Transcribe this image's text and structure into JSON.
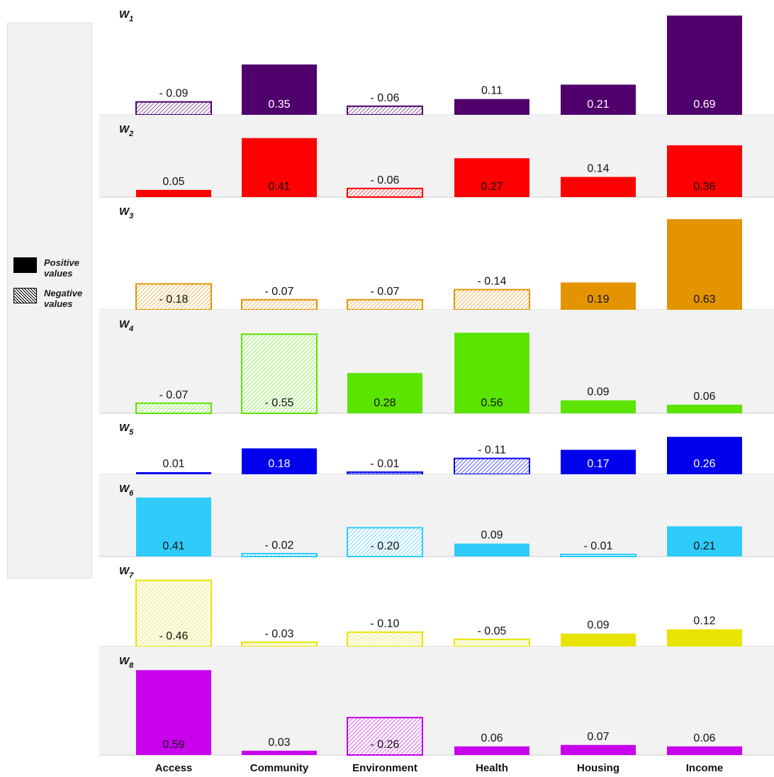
{
  "legend": {
    "positive_line1": "Positive",
    "positive_line2": "values",
    "negative_line1": "Negative",
    "negative_line2": "values"
  },
  "chart_data": {
    "type": "bar",
    "categories": [
      "Access",
      "Community",
      "Environment",
      "Health",
      "Housing",
      "Income"
    ],
    "series": [
      {
        "name": "W1",
        "color": "#4f006d",
        "values": [
          -0.09,
          0.35,
          -0.06,
          0.11,
          0.21,
          0.69
        ],
        "labels": [
          "- 0.09",
          "0.35",
          "- 0.06",
          "0.11",
          "0.21",
          "0.69"
        ]
      },
      {
        "name": "W2",
        "color": "#fe0000",
        "values": [
          0.05,
          0.41,
          -0.06,
          0.27,
          0.14,
          0.36
        ],
        "labels": [
          "0.05",
          "0.41",
          "- 0.06",
          "0.27",
          "0.14",
          "0.36"
        ]
      },
      {
        "name": "W3",
        "color": "#e49400",
        "values": [
          -0.18,
          -0.07,
          -0.07,
          -0.14,
          0.19,
          0.63
        ],
        "labels": [
          "- 0.18",
          "- 0.07",
          "- 0.07",
          "- 0.14",
          "0.19",
          "0.63"
        ]
      },
      {
        "name": "W4",
        "color": "#5ae400",
        "values": [
          -0.07,
          -0.55,
          0.28,
          0.56,
          0.09,
          0.06
        ],
        "labels": [
          "- 0.07",
          "- 0.55",
          "0.28",
          "0.56",
          "0.09",
          "0.06"
        ]
      },
      {
        "name": "W5",
        "color": "#0000ee",
        "values": [
          0.01,
          0.18,
          -0.01,
          -0.11,
          0.17,
          0.26
        ],
        "labels": [
          "0.01",
          "0.18",
          "- 0.01",
          "- 0.11",
          "0.17",
          "0.26"
        ]
      },
      {
        "name": "W6",
        "color": "#2ecbfb",
        "values": [
          0.41,
          -0.02,
          -0.2,
          0.09,
          -0.01,
          0.21
        ],
        "labels": [
          "0.41",
          "- 0.02",
          "- 0.20",
          "0.09",
          "- 0.01",
          "0.21"
        ]
      },
      {
        "name": "W7",
        "color": "#e6e400",
        "values": [
          -0.46,
          -0.03,
          -0.1,
          -0.05,
          0.09,
          0.12
        ],
        "labels": [
          "- 0.46",
          "- 0.03",
          "- 0.10",
          "- 0.05",
          "0.09",
          "0.12"
        ]
      },
      {
        "name": "W8",
        "color": "#c800ee",
        "values": [
          0.59,
          0.03,
          -0.26,
          0.06,
          0.07,
          0.06
        ],
        "labels": [
          "0.59",
          "0.03",
          "- 0.26",
          "0.06",
          "0.07",
          "0.06"
        ]
      }
    ],
    "bar_height_metric": "absolute value",
    "grid": false,
    "legend_position": "left"
  }
}
